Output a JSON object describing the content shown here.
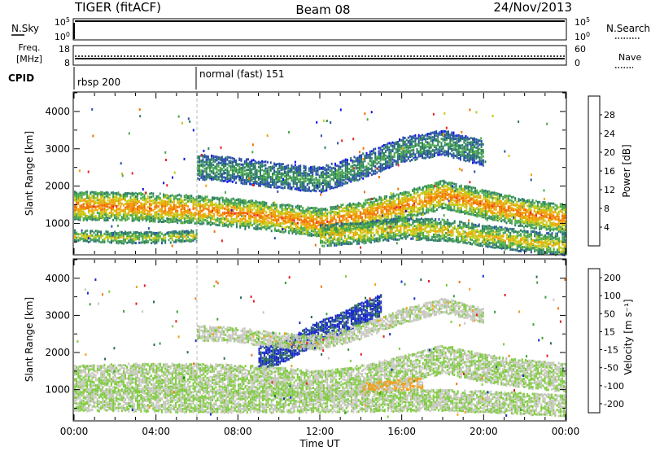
{
  "header": {
    "radar": "TIGER (fitACF)",
    "beam": "Beam 08",
    "date": "24/Nov/2013"
  },
  "status_panels": {
    "nsky": {
      "label": "N.Sky",
      "ticks": [
        "10^5",
        "10^0"
      ]
    },
    "nsearch": {
      "label": "N.Search",
      "ticks": [
        "10^5",
        "10^0"
      ]
    },
    "freq": {
      "label_line1": "Freq.",
      "label_line2": "[MHz]",
      "ticks": [
        "18",
        "8"
      ]
    },
    "nave": {
      "label": "Nave",
      "ticks": [
        "60",
        "0"
      ]
    },
    "cpid": {
      "label": "CPID",
      "modes": [
        {
          "name": "rbsp 200",
          "start_hour": 0
        },
        {
          "name": "normal (fast) 151",
          "start_hour": 6
        }
      ]
    }
  },
  "colors": {
    "power": [
      "#1010ee",
      "#2a4fa8",
      "#2e7f64",
      "#4aa84a",
      "#c8c812",
      "#f0a000",
      "#f07000",
      "#e82020"
    ],
    "velocity": [
      "#1a2ac8",
      "#2a6a5a",
      "#3aa03a",
      "#80cc40",
      "#c8c8c0",
      "#f0a020",
      "#f07818",
      "#e02020"
    ]
  },
  "chart_data": [
    {
      "type": "heatmap",
      "ylabel": "Slant Range [km]",
      "xlabel": "Time UT",
      "ylim": [
        180,
        4500
      ],
      "xlim": [
        0,
        24
      ],
      "x_ticks": [
        "00:00",
        "04:00",
        "08:00",
        "12:00",
        "16:00",
        "20:00",
        "00:00"
      ],
      "y_ticks": [
        "1000",
        "2000",
        "3000",
        "4000"
      ],
      "colorbar": {
        "label": "Power [dB]",
        "ticks": [
          "4",
          "8",
          "12",
          "16",
          "20",
          "24",
          "28"
        ],
        "range": [
          0,
          30
        ]
      },
      "bands": [
        {
          "x": [
            0,
            3,
            6,
            9,
            12,
            14,
            16,
            18,
            20,
            22,
            24
          ],
          "y": [
            1500,
            1480,
            1400,
            1250,
            1050,
            1250,
            1500,
            1800,
            1550,
            1300,
            1150
          ],
          "width": 350,
          "power": 20
        },
        {
          "x": [
            12,
            14,
            16,
            18,
            20,
            22,
            24
          ],
          "y": [
            700,
            780,
            900,
            850,
            700,
            550,
            450
          ],
          "width": 250,
          "power": 16
        },
        {
          "x": [
            6,
            8,
            10,
            12,
            14,
            16,
            18,
            20
          ],
          "y": [
            2550,
            2450,
            2300,
            2200,
            2550,
            3000,
            3200,
            2900
          ],
          "width": 300,
          "power": 10
        },
        {
          "x": [
            0,
            2,
            4,
            6
          ],
          "y": [
            700,
            650,
            650,
            700
          ],
          "width": 150,
          "power": 14
        }
      ]
    },
    {
      "type": "heatmap",
      "ylabel": "Slant Range [km]",
      "xlabel": "Time UT",
      "ylim": [
        180,
        4500
      ],
      "xlim": [
        0,
        24
      ],
      "x_ticks": [
        "00:00",
        "04:00",
        "08:00",
        "12:00",
        "16:00",
        "20:00",
        "00:00"
      ],
      "y_ticks": [
        "1000",
        "2000",
        "3000",
        "4000"
      ],
      "colorbar": {
        "label": "Velocity [m s⁻¹]",
        "ticks": [
          "200",
          "100",
          "50",
          "15",
          "-15",
          "-50",
          "-100",
          "-200"
        ],
        "range": [
          -250,
          250
        ]
      },
      "bands": [
        {
          "x": [
            0,
            3,
            6,
            9,
            12,
            14,
            16,
            18,
            20,
            22,
            24
          ],
          "y": [
            1300,
            1350,
            1350,
            1300,
            1150,
            1300,
            1550,
            1850,
            1600,
            1450,
            1350
          ],
          "width": 350,
          "velocity": 0
        },
        {
          "x": [
            9,
            10,
            11,
            12,
            13,
            14,
            15
          ],
          "y": [
            1900,
            2000,
            2300,
            2600,
            2800,
            3100,
            3300
          ],
          "width": 250,
          "velocity": 200
        },
        {
          "x": [
            6,
            8,
            10,
            12,
            14,
            16,
            18,
            20
          ],
          "y": [
            2550,
            2500,
            2350,
            2300,
            2600,
            3000,
            3300,
            3000
          ],
          "width": 200,
          "velocity": -20
        },
        {
          "x": [
            14,
            15,
            16,
            17
          ],
          "y": [
            1050,
            1100,
            1150,
            1200
          ],
          "width": 150,
          "velocity": -80
        },
        {
          "x": [
            0,
            6,
            12,
            18,
            24
          ],
          "y": [
            750,
            700,
            700,
            750,
            600
          ],
          "width": 250,
          "velocity": 0
        }
      ]
    }
  ],
  "ui": {
    "x_axis_label": "Time UT"
  }
}
